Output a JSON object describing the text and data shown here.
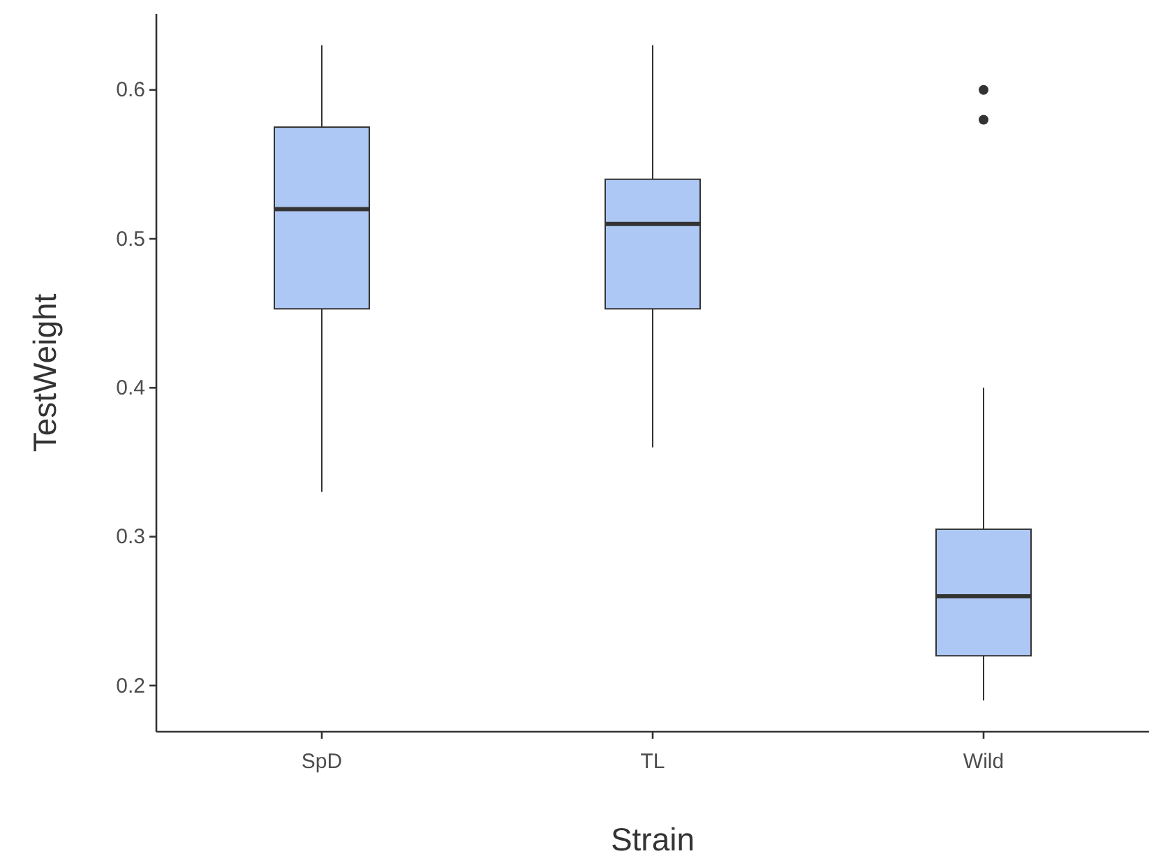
{
  "chart_data": {
    "type": "box",
    "xlabel": "Strain",
    "ylabel": "TestWeight",
    "categories": [
      "SpD",
      "TL",
      "Wild"
    ],
    "color": "#aec8f5",
    "ylim": [
      0.169,
      0.651
    ],
    "yticks": [
      0.2,
      0.3,
      0.4,
      0.5,
      0.6
    ],
    "grid": false,
    "boxes": [
      {
        "low": 0.33,
        "q1": 0.453,
        "median": 0.52,
        "q3": 0.575,
        "high": 0.63
      },
      {
        "low": 0.36,
        "q1": 0.453,
        "median": 0.51,
        "q3": 0.54,
        "high": 0.63
      },
      {
        "low": 0.19,
        "q1": 0.22,
        "median": 0.26,
        "q3": 0.305,
        "high": 0.4,
        "outliers": [
          0.6,
          0.58
        ]
      }
    ]
  }
}
